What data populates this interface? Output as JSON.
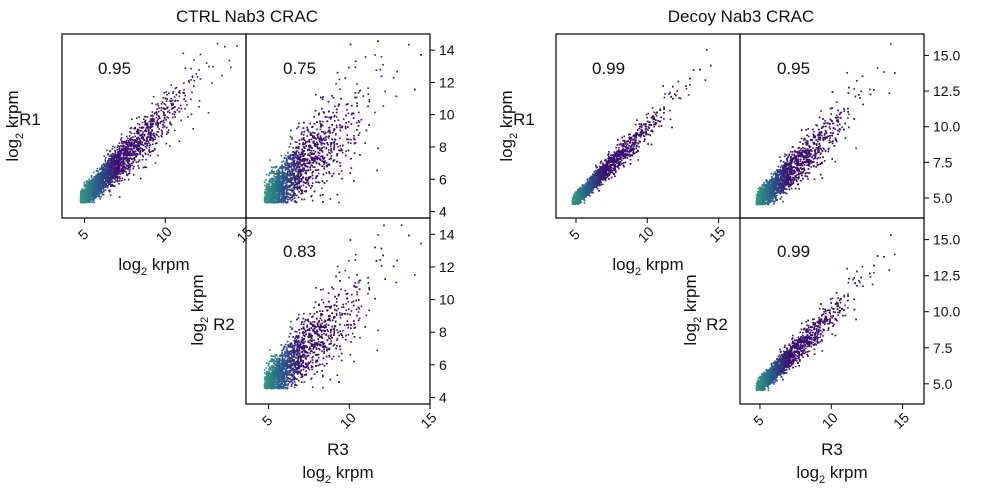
{
  "chart_data": [
    {
      "type": "scatter",
      "title": "CTRL Nab3 CRAC",
      "axis_label_main": "log",
      "axis_label_sub": "2",
      "axis_label_unit": " krpm",
      "x_ticks": [
        5,
        10,
        15
      ],
      "y_ticks": [
        4,
        6,
        8,
        10,
        12,
        14
      ],
      "xlim": [
        3.6,
        15
      ],
      "ylim": [
        3.6,
        15
      ],
      "grid": false,
      "panels": [
        {
          "row_label": "R1",
          "col_label": "R2",
          "correlation": "0.95",
          "spread": 0.45,
          "slope": 1.0
        },
        {
          "row_label": "R1",
          "col_label": "R3",
          "correlation": "0.75",
          "spread": 0.85,
          "slope": 0.95
        },
        {
          "row_label": "R2",
          "col_label": "R3",
          "correlation": "0.83",
          "spread": 0.75,
          "slope": 0.92
        }
      ]
    },
    {
      "type": "scatter",
      "title": "Decoy Nab3 CRAC",
      "axis_label_main": "log",
      "axis_label_sub": "2",
      "axis_label_unit": " krpm",
      "x_ticks": [
        5,
        10,
        15
      ],
      "y_ticks": [
        5.0,
        7.5,
        10.0,
        12.5,
        15.0
      ],
      "y_tick_labels": [
        "5.0",
        "7.5",
        "10.0",
        "12.5",
        "15.0"
      ],
      "xlim": [
        3.6,
        16.5
      ],
      "ylim": [
        3.6,
        16.5
      ],
      "grid": false,
      "panels": [
        {
          "row_label": "R1",
          "col_label": "R2",
          "correlation": "0.99",
          "spread": 0.3,
          "slope": 1.0
        },
        {
          "row_label": "R1",
          "col_label": "R3",
          "correlation": "0.95",
          "spread": 0.5,
          "slope": 0.95
        },
        {
          "row_label": "R2",
          "col_label": "R3",
          "correlation": "0.99",
          "spread": 0.35,
          "slope": 0.97
        }
      ]
    }
  ],
  "colors": {
    "low": "#3b0f6f",
    "mid": "#2a5c8c",
    "high": "#35b779"
  }
}
